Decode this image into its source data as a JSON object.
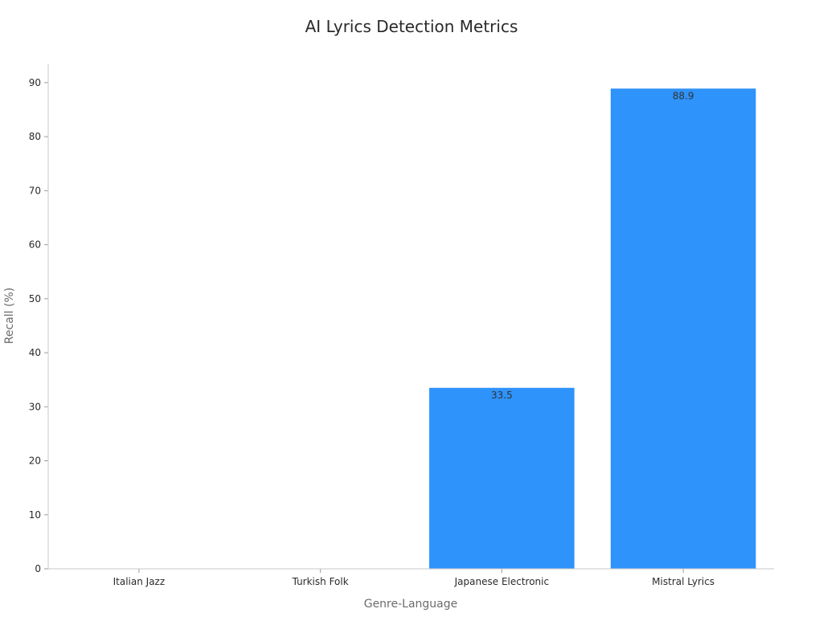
{
  "chart_data": {
    "type": "bar",
    "title": "AI Lyrics Detection Metrics",
    "xlabel": "Genre-Language",
    "ylabel": "Recall (%)",
    "categories": [
      "Italian Jazz",
      "Turkish Folk",
      "Japanese Electronic",
      "Mistral Lyrics"
    ],
    "values": [
      0,
      0,
      33.5,
      88.9
    ],
    "data_labels": [
      "",
      "",
      "33.5",
      "88.9"
    ],
    "ylim": [
      0,
      93.4
    ],
    "yticks": [
      0,
      10,
      20,
      30,
      40,
      50,
      60,
      70,
      80,
      90
    ],
    "grid": false,
    "bar_color": "#2e93fa"
  }
}
